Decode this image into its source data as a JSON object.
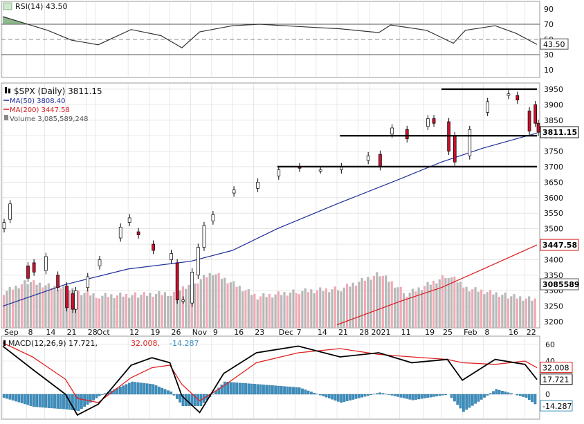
{
  "colors": {
    "up_candle": "#ffffff",
    "down_candle": "#c8102e",
    "ma50": "#1f2f9a",
    "ma200": "#d7191c",
    "volume_up": "#b8b8b8",
    "volume_down": "#f2aab6",
    "rsi_line": "#333333",
    "macd_line": "#000000",
    "macd_signal": "#e0201f",
    "histogram": "#3a8fc0",
    "support_resistance": "#000000",
    "grid": "#d8d8d8",
    "frame": "#9a9a9a",
    "badge_ma200": "#d7191c"
  },
  "chart_data": [
    {
      "type": "line",
      "panel": "rsi",
      "title": "RSI(14) 43.50",
      "yticks": [
        10,
        30,
        50,
        70,
        90
      ],
      "ylim": [
        0,
        100
      ],
      "reference_lines": [
        30,
        50,
        70
      ],
      "last_value_label": "43.50",
      "x": [
        "2020-08-31",
        "2020-09-15",
        "2020-09-23",
        "2020-10-02",
        "2020-10-13",
        "2020-10-23",
        "2020-10-30",
        "2020-11-05",
        "2020-11-16",
        "2020-11-25",
        "2020-12-08",
        "2020-12-22",
        "2021-01-04",
        "2021-01-08",
        "2021-01-20",
        "2021-01-29",
        "2021-02-02",
        "2021-02-12",
        "2021-02-19",
        "2021-02-26"
      ],
      "series": [
        {
          "values": [
            80,
            62,
            49,
            43,
            63,
            55,
            39,
            60,
            68,
            70,
            67,
            64,
            59,
            69,
            62,
            45,
            62,
            68,
            58,
            43.5
          ]
        }
      ]
    },
    {
      "type": "candlestick",
      "panel": "price",
      "title": "$SPX (Daily) 3811.15",
      "ylim": [
        3180,
        3970
      ],
      "yticks": [
        3200,
        3250,
        3300,
        3350,
        3400,
        3450,
        3500,
        3550,
        3600,
        3650,
        3700,
        3750,
        3800,
        3850,
        3900,
        3950
      ],
      "xtick_labels": [
        "Sep",
        "8",
        "14",
        "21",
        "28",
        "Oct",
        "12",
        "19",
        "26",
        "Nov",
        "9",
        "16",
        "23",
        "Dec",
        "7",
        "14",
        "21",
        "28",
        "2021",
        "11",
        "19",
        "25",
        "Feb",
        "8",
        "16",
        "22"
      ],
      "price_badge": "3811.15",
      "ma200_badge": "3447.58",
      "volume_badge": "3085589",
      "horizontal_levels": [
        3950,
        3800,
        3700
      ],
      "legend": [
        {
          "label": "MA(50) 3808.40",
          "color": "#1f2f9a"
        },
        {
          "label": "MA(200) 3447.58",
          "color": "#d7191c"
        },
        {
          "label": "Volume 3,085,589,248",
          "color": "#888888"
        }
      ],
      "x": [
        "2020-08-31",
        "2020-09-02",
        "2020-09-08",
        "2020-09-10",
        "2020-09-14",
        "2020-09-18",
        "2020-09-21",
        "2020-09-23",
        "2020-09-24",
        "2020-09-28",
        "2020-10-02",
        "2020-10-09",
        "2020-10-12",
        "2020-10-15",
        "2020-10-20",
        "2020-10-26",
        "2020-10-28",
        "2020-10-30",
        "2020-11-02",
        "2020-11-04",
        "2020-11-06",
        "2020-11-09",
        "2020-11-16",
        "2020-11-24",
        "2020-12-01",
        "2020-12-08",
        "2020-12-15",
        "2020-12-22",
        "2020-12-31",
        "2021-01-04",
        "2021-01-08",
        "2021-01-13",
        "2021-01-20",
        "2021-01-22",
        "2021-01-27",
        "2021-01-29",
        "2021-02-03",
        "2021-02-09",
        "2021-02-16",
        "2021-02-19",
        "2021-02-23",
        "2021-02-25",
        "2021-02-26"
      ],
      "open": [
        3500,
        3530,
        3380,
        3390,
        3365,
        3350,
        3315,
        3290,
        3240,
        3310,
        3380,
        3470,
        3520,
        3490,
        3450,
        3400,
        3390,
        3270,
        3260,
        3350,
        3440,
        3525,
        3615,
        3630,
        3670,
        3700,
        3690,
        3690,
        3720,
        3740,
        3805,
        3820,
        3830,
        3855,
        3845,
        3800,
        3735,
        3875,
        3930,
        3930,
        3880,
        3900,
        3840
      ],
      "close": [
        3520,
        3580,
        3340,
        3360,
        3410,
        3310,
        3245,
        3240,
        3300,
        3345,
        3400,
        3505,
        3535,
        3480,
        3430,
        3420,
        3270,
        3270,
        3360,
        3440,
        3510,
        3545,
        3625,
        3650,
        3690,
        3695,
        3690,
        3700,
        3735,
        3700,
        3825,
        3790,
        3855,
        3840,
        3750,
        3715,
        3820,
        3910,
        3935,
        3915,
        3815,
        3840,
        3811
      ]
    },
    {
      "type": "bar",
      "panel": "volume",
      "x": [
        "2020-08-31",
        "2020-09-08",
        "2020-09-21",
        "2020-10-02",
        "2020-10-15",
        "2020-10-26",
        "2020-11-04",
        "2020-11-09",
        "2020-11-24",
        "2020-12-08",
        "2020-12-22",
        "2021-01-04",
        "2021-01-13",
        "2021-01-27",
        "2021-02-03",
        "2021-02-16",
        "2021-02-26"
      ],
      "values": [
        4.0,
        5.2,
        4.3,
        3.6,
        3.7,
        3.9,
        5.3,
        6.2,
        3.5,
        4.1,
        4.4,
        6.1,
        3.8,
        5.9,
        4.4,
        3.6,
        3.1
      ]
    },
    {
      "type": "line",
      "panel": "macd",
      "title": "MACD(12,26,9) 17.721, 32.008, -14.287",
      "legend_parts": [
        "MACD(12,26,9) 17.721,",
        "32.008,",
        "-14.287"
      ],
      "ylim": [
        -30,
        70
      ],
      "yticks": [
        0,
        20,
        40,
        60
      ],
      "macd_badge": "17.721",
      "signal_badge": "32.008",
      "hist_badge": "-14.287",
      "x": [
        "2020-08-31",
        "2020-09-10",
        "2020-09-21",
        "2020-09-25",
        "2020-10-02",
        "2020-10-13",
        "2020-10-20",
        "2020-10-26",
        "2020-10-30",
        "2020-11-05",
        "2020-11-13",
        "2020-11-24",
        "2020-12-08",
        "2020-12-22",
        "2021-01-04",
        "2021-01-15",
        "2021-01-27",
        "2021-02-01",
        "2021-02-12",
        "2021-02-22",
        "2021-02-26"
      ],
      "series": [
        {
          "values": [
            58,
            30,
            0,
            -25,
            -12,
            35,
            44,
            38,
            -2,
            -22,
            25,
            50,
            58,
            45,
            50,
            38,
            42,
            17,
            42,
            36,
            17.721
          ]
        },
        {
          "values": [
            62,
            45,
            18,
            -5,
            -10,
            20,
            32,
            35,
            12,
            -8,
            10,
            38,
            50,
            55,
            48,
            45,
            42,
            38,
            36,
            40,
            32.008
          ]
        }
      ]
    }
  ]
}
